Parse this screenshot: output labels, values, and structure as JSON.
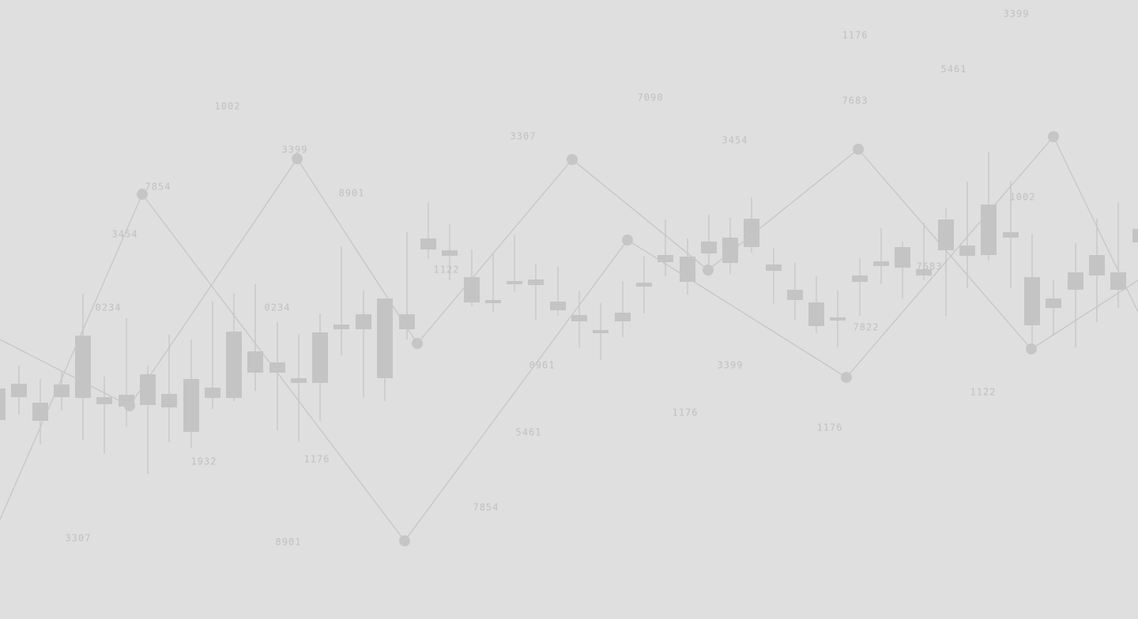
{
  "labels": [
    "3399",
    "1176",
    "5461",
    "1002",
    "7090",
    "7683",
    "3307",
    "3454",
    "3399",
    "7854",
    "8901",
    "1002",
    "3454",
    "1122",
    "7683",
    "0234",
    "0234",
    "7822",
    "0961",
    "3399",
    "1122",
    "1176",
    "1176",
    "5461",
    "1932",
    "1176",
    "7854",
    "3307",
    "8901"
  ]
}
